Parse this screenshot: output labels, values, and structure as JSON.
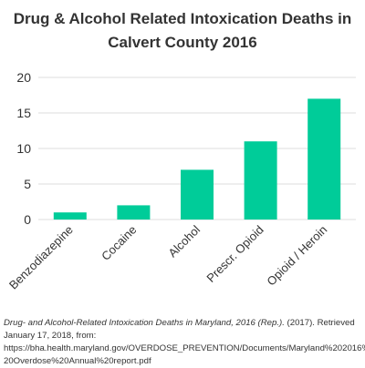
{
  "title_line1": "Drug & Alcohol Related Intoxication Deaths in",
  "title_line2": "Calvert County 2016",
  "chart_data": {
    "type": "bar",
    "title": "Drug & Alcohol Related Intoxication Deaths in Calvert County 2016",
    "categories": [
      "Benzodiazepine",
      "Cocaine",
      "Alcohol",
      "Prescr. Opioid",
      "Opioid / Heroin"
    ],
    "values": [
      1,
      2,
      7,
      11,
      17
    ],
    "ylim": [
      0,
      20
    ],
    "yticks": [
      0,
      5,
      10,
      15,
      20
    ],
    "xlabel": "",
    "ylabel": "",
    "grid": true,
    "bar_color": "#00cc99",
    "grid_color": "#dddddd"
  },
  "citation": {
    "italic": "Drug- and Alcohol-Related Intoxication Deaths in Maryland, 2016 (Rep.).",
    "rest": " (2017). Retrieved January 17, 2018, from:",
    "url_line1": "https://bha.health.maryland.gov/OVERDOSE_PREVENTION/Documents/Maryland%202016%",
    "url_line2": "20Overdose%20Annual%20report.pdf"
  }
}
